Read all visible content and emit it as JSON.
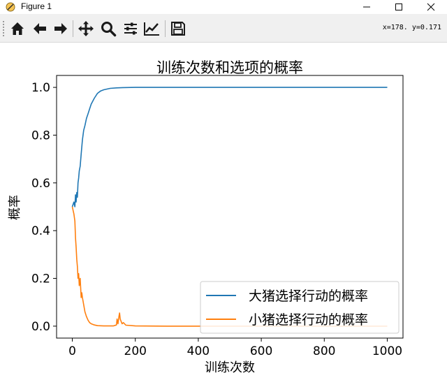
{
  "window": {
    "title": "Figure 1",
    "coords": "x=178.  y=0.171"
  },
  "toolbar": {
    "buttons": [
      "home-icon",
      "back-icon",
      "forward-icon",
      "pan-icon",
      "zoom-icon",
      "subplots-icon",
      "edit-axis-icon",
      "save-icon"
    ]
  },
  "chart_data": {
    "type": "line",
    "title": "训练次数和选项的概率",
    "xlabel": "训练次数",
    "ylabel": "概率",
    "xlim": [
      -50,
      1050
    ],
    "ylim": [
      -0.05,
      1.05
    ],
    "xticks": [
      0,
      200,
      400,
      600,
      800,
      1000
    ],
    "yticks": [
      0.0,
      0.2,
      0.4,
      0.6,
      0.8,
      1.0
    ],
    "xtick_labels": [
      "0",
      "200",
      "400",
      "600",
      "800",
      "1000"
    ],
    "ytick_labels": [
      "0.0",
      "0.2",
      "0.4",
      "0.6",
      "0.8",
      "1.0"
    ],
    "grid": false,
    "legend_position": "lower right",
    "series": [
      {
        "name": "大猪选择行动的概率",
        "color": "#1f77b4",
        "x": [
          0,
          5,
          8,
          10,
          12,
          14,
          16,
          18,
          20,
          22,
          25,
          28,
          32,
          36,
          40,
          45,
          50,
          55,
          60,
          70,
          80,
          90,
          100,
          120,
          140,
          160,
          200,
          300,
          500,
          1000
        ],
        "y": [
          0.5,
          0.52,
          0.5,
          0.55,
          0.52,
          0.56,
          0.54,
          0.6,
          0.62,
          0.65,
          0.67,
          0.72,
          0.78,
          0.82,
          0.84,
          0.87,
          0.89,
          0.91,
          0.93,
          0.955,
          0.975,
          0.985,
          0.99,
          0.996,
          0.998,
          0.999,
          1.0,
          1.0,
          1.0,
          1.0
        ]
      },
      {
        "name": "小猪选择行动的概率",
        "color": "#ff7f0e",
        "x": [
          0,
          5,
          8,
          10,
          12,
          14,
          16,
          18,
          20,
          22,
          25,
          28,
          30,
          32,
          36,
          40,
          45,
          50,
          55,
          60,
          70,
          80,
          100,
          130,
          140,
          142,
          145,
          148,
          150,
          152,
          155,
          158,
          162,
          170,
          200,
          300,
          500,
          1000
        ],
        "y": [
          0.5,
          0.47,
          0.44,
          0.37,
          0.33,
          0.28,
          0.25,
          0.2,
          0.22,
          0.17,
          0.2,
          0.12,
          0.14,
          0.12,
          0.09,
          0.06,
          0.04,
          0.025,
          0.015,
          0.01,
          0.005,
          0.002,
          0.001,
          0.001,
          0.005,
          0.03,
          0.01,
          0.04,
          0.055,
          0.03,
          0.02,
          0.01,
          0.015,
          0.004,
          0.001,
          0.0,
          0.0,
          0.0
        ]
      }
    ]
  }
}
